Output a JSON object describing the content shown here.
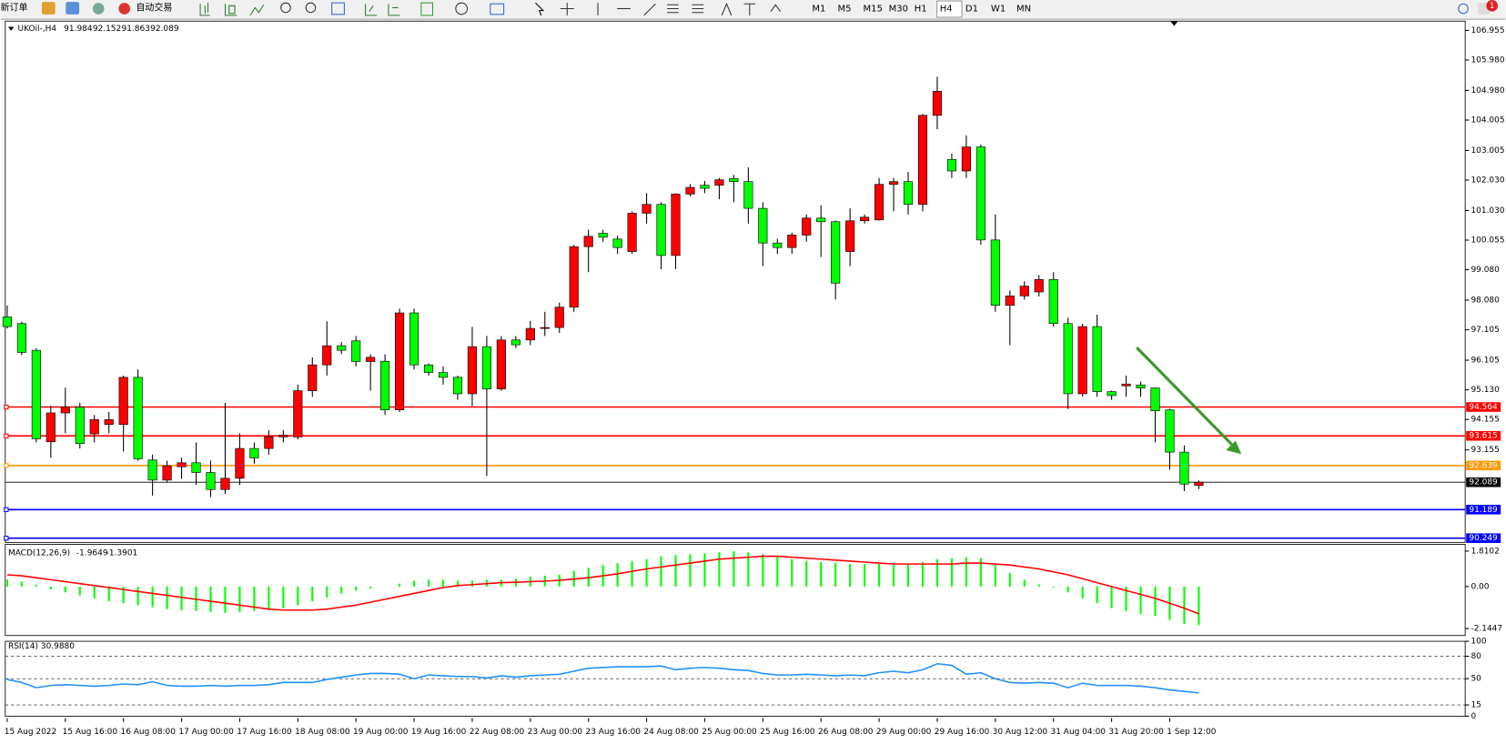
{
  "toolbar": {
    "new_order": "新订单",
    "auto_trading": "自动交易",
    "timeframes": [
      "M1",
      "M5",
      "M15",
      "M30",
      "H1",
      "H4",
      "D1",
      "W1",
      "MN"
    ],
    "active_timeframe": 5,
    "alerts": "1"
  },
  "chart_data": [
    {
      "type": "candlestick",
      "title": "UKOil-,H4",
      "up_color": "#ff0000",
      "down_color": "#00ff00",
      "categories": [
        "15 Aug 2022",
        null,
        null,
        null,
        "15 Aug 16:00",
        null,
        null,
        null,
        "16 Aug 08:00",
        null,
        null,
        null,
        "17 Aug 00:00",
        null,
        null,
        null,
        "17 Aug 16:00",
        null,
        null,
        null,
        "18 Aug 08:00",
        null,
        null,
        null,
        "19 Aug 00:00",
        null,
        null,
        null,
        "19 Aug 16:00",
        null,
        null,
        null,
        "22 Aug 08:00",
        null,
        null,
        null,
        "23 Aug 00:00",
        null,
        null,
        null,
        "23 Aug 16:00",
        null,
        null,
        null,
        "24 Aug 08:00",
        null,
        null,
        null,
        "25 Aug 00:00",
        null,
        null,
        null,
        "25 Aug 16:00",
        null,
        null,
        null,
        "26 Aug 08:00",
        null,
        null,
        null,
        "29 Aug 00:00",
        null,
        null,
        null,
        "29 Aug 16:00",
        null,
        null,
        null,
        "30 Aug 12:00",
        null,
        null,
        null,
        "31 Aug 04:00",
        null,
        null,
        null,
        "31 Aug 20:00",
        null,
        null,
        null,
        "1 Sep 12:00",
        null,
        null
      ],
      "ohlc": [
        [
          97.53,
          97.9,
          97.15,
          97.21
        ],
        [
          97.31,
          97.37,
          96.27,
          96.36
        ],
        [
          96.43,
          96.5,
          93.4,
          93.52
        ],
        [
          93.42,
          94.6,
          92.9,
          94.37
        ],
        [
          94.37,
          95.2,
          93.7,
          94.56
        ],
        [
          94.56,
          94.7,
          93.2,
          93.36
        ],
        [
          93.68,
          94.3,
          93.4,
          94.15
        ],
        [
          93.99,
          94.4,
          93.7,
          94.15
        ],
        [
          93.99,
          95.6,
          93.1,
          95.54
        ],
        [
          95.54,
          95.8,
          92.8,
          92.86
        ],
        [
          92.82,
          93.0,
          91.65,
          92.16
        ],
        [
          92.16,
          92.8,
          92.1,
          92.63
        ],
        [
          92.6,
          92.9,
          92.2,
          92.73
        ],
        [
          92.73,
          93.4,
          92.0,
          92.41
        ],
        [
          92.41,
          92.8,
          91.6,
          91.85
        ],
        [
          91.85,
          94.7,
          91.7,
          92.22
        ],
        [
          92.22,
          93.7,
          92.0,
          93.2
        ],
        [
          93.2,
          93.4,
          92.7,
          92.89
        ],
        [
          93.2,
          93.8,
          93.0,
          93.58
        ],
        [
          93.58,
          93.8,
          93.4,
          93.64
        ],
        [
          93.58,
          95.3,
          93.5,
          95.1
        ],
        [
          95.1,
          96.2,
          94.9,
          95.95
        ],
        [
          95.95,
          97.38,
          95.6,
          96.58
        ],
        [
          96.58,
          96.7,
          96.3,
          96.43
        ],
        [
          96.74,
          96.9,
          95.9,
          96.06
        ],
        [
          96.06,
          96.3,
          95.1,
          96.2
        ],
        [
          96.07,
          96.3,
          94.3,
          94.47
        ],
        [
          94.47,
          97.8,
          94.4,
          97.66
        ],
        [
          97.66,
          97.8,
          95.8,
          95.95
        ],
        [
          95.95,
          96.0,
          95.6,
          95.7
        ],
        [
          95.7,
          95.9,
          95.3,
          95.54
        ],
        [
          95.54,
          95.6,
          94.8,
          95.0
        ],
        [
          95.0,
          97.2,
          94.6,
          96.55
        ],
        [
          96.55,
          96.9,
          92.3,
          95.16
        ],
        [
          95.16,
          96.9,
          95.1,
          96.77
        ],
        [
          96.77,
          96.9,
          96.5,
          96.61
        ],
        [
          96.77,
          97.4,
          96.6,
          97.15
        ],
        [
          97.15,
          97.7,
          96.9,
          97.18
        ],
        [
          97.18,
          98.0,
          97.0,
          97.85
        ],
        [
          97.85,
          99.9,
          97.7,
          99.84
        ],
        [
          99.84,
          100.4,
          99.0,
          100.18
        ],
        [
          100.28,
          100.4,
          100.0,
          100.15
        ],
        [
          100.09,
          100.2,
          99.6,
          99.81
        ],
        [
          99.68,
          101.0,
          99.6,
          100.94
        ],
        [
          100.94,
          101.6,
          100.6,
          101.23
        ],
        [
          101.23,
          101.3,
          99.1,
          99.55
        ],
        [
          99.55,
          101.6,
          99.1,
          101.57
        ],
        [
          101.57,
          101.9,
          101.5,
          101.79
        ],
        [
          101.86,
          102.0,
          101.6,
          101.76
        ],
        [
          101.86,
          102.1,
          101.4,
          102.04
        ],
        [
          102.08,
          102.2,
          101.3,
          101.98
        ],
        [
          101.98,
          102.45,
          100.6,
          101.1
        ],
        [
          101.1,
          101.3,
          99.2,
          99.96
        ],
        [
          99.96,
          100.1,
          99.6,
          99.81
        ],
        [
          99.81,
          100.3,
          99.6,
          100.22
        ],
        [
          100.22,
          100.9,
          100.0,
          100.78
        ],
        [
          100.78,
          101.2,
          99.5,
          100.66
        ],
        [
          100.66,
          100.7,
          98.1,
          98.64
        ],
        [
          99.68,
          101.1,
          99.2,
          100.69
        ],
        [
          100.69,
          100.9,
          100.6,
          100.81
        ],
        [
          100.72,
          102.1,
          100.7,
          101.89
        ],
        [
          101.89,
          102.1,
          101.0,
          101.98
        ],
        [
          101.98,
          102.3,
          100.9,
          101.23
        ],
        [
          101.23,
          104.2,
          101.0,
          104.16
        ],
        [
          104.16,
          105.43,
          103.7,
          104.95
        ],
        [
          102.71,
          102.9,
          102.1,
          102.33
        ],
        [
          102.33,
          103.5,
          102.1,
          103.12
        ],
        [
          103.12,
          103.2,
          99.9,
          100.06
        ],
        [
          100.06,
          100.9,
          97.7,
          97.91
        ],
        [
          97.91,
          98.4,
          96.6,
          98.22
        ],
        [
          98.22,
          98.7,
          98.1,
          98.54
        ],
        [
          98.35,
          98.9,
          98.2,
          98.76
        ],
        [
          98.76,
          99.0,
          97.2,
          97.31
        ],
        [
          97.31,
          97.5,
          94.5,
          95.0
        ],
        [
          95.0,
          97.3,
          94.9,
          97.21
        ],
        [
          97.21,
          97.6,
          94.9,
          95.07
        ],
        [
          95.07,
          95.1,
          94.8,
          94.94
        ],
        [
          95.26,
          95.6,
          94.9,
          95.32
        ],
        [
          95.29,
          95.4,
          94.9,
          95.19
        ],
        [
          95.19,
          95.2,
          93.4,
          94.44
        ],
        [
          94.47,
          94.5,
          92.5,
          93.08
        ],
        [
          93.08,
          93.3,
          91.8,
          92.03
        ],
        [
          91.984,
          92.152,
          91.863,
          92.089
        ]
      ],
      "ylim": [
        90.11,
        107.26
      ],
      "yticks": [
        106.955,
        {
          "value": 105.98,
          "label": "105.980"
        },
        {
          "value": 104.98,
          "label": "104.980"
        },
        104.005,
        103.005,
        {
          "value": 102.03,
          "label": "102.030"
        },
        {
          "value": 101.03,
          "label": "101.030"
        },
        100.055,
        {
          "value": 99.08,
          "label": "99.080"
        },
        {
          "value": 98.08,
          "label": "98.080"
        },
        97.105,
        96.105,
        {
          "value": 95.13,
          "label": "95.130"
        },
        94.155,
        93.155
      ],
      "levels": [
        {
          "value": 94.564,
          "color": "#ff0000"
        },
        {
          "value": 93.615,
          "color": "#ff0000"
        },
        {
          "value": 92.639,
          "color": "#ff9900"
        },
        {
          "value": 91.189,
          "color": "#0000ff"
        },
        {
          "value": 90.249,
          "color": "#0000ff"
        }
      ]
    },
    {
      "type": "macd",
      "title": "MACD(12,26,9)",
      "ylim": [
        -2.5,
        2.157
      ],
      "yticks": [
        1.8102,
        {
          "value": 0,
          "label": "0.00"
        },
        -2.1447
      ],
      "series": [
        {
          "color": "#00ff00",
          "values": [
            0.35,
            0.25,
            0.1,
            -0.15,
            -0.3,
            -0.45,
            -0.6,
            -0.75,
            -0.85,
            -0.95,
            -1.05,
            -1.15,
            -1.2,
            -1.25,
            -1.3,
            -1.35,
            -1.3,
            -1.25,
            -1.2,
            -1.1,
            -0.95,
            -0.75,
            -0.55,
            -0.35,
            -0.2,
            -0.1,
            0.0,
            0.15,
            0.3,
            0.35,
            0.35,
            0.3,
            0.3,
            0.35,
            0.35,
            0.4,
            0.5,
            0.55,
            0.6,
            0.8,
            0.95,
            1.1,
            1.2,
            1.3,
            1.4,
            1.55,
            1.6,
            1.65,
            1.7,
            1.75,
            1.8,
            1.75,
            1.65,
            1.5,
            1.4,
            1.3,
            1.25,
            1.2,
            1.15,
            1.15,
            1.15,
            1.1,
            1.15,
            1.25,
            1.4,
            1.45,
            1.5,
            1.45,
            1.1,
            0.7,
            0.35,
            0.1,
            -0.05,
            -0.3,
            -0.6,
            -0.85,
            -1.1,
            -1.25,
            -1.4,
            -1.5,
            -1.7,
            -1.9,
            -1.9649
          ]
        },
        {
          "color": "#ff0000",
          "values": [
            0.6,
            0.55,
            0.45,
            0.35,
            0.25,
            0.15,
            0.05,
            -0.05,
            -0.15,
            -0.25,
            -0.35,
            -0.45,
            -0.55,
            -0.65,
            -0.75,
            -0.85,
            -0.95,
            -1.05,
            -1.15,
            -1.2,
            -1.2,
            -1.2,
            -1.15,
            -1.05,
            -0.95,
            -0.8,
            -0.65,
            -0.5,
            -0.35,
            -0.2,
            -0.05,
            0.05,
            0.1,
            0.15,
            0.2,
            0.22,
            0.25,
            0.28,
            0.32,
            0.38,
            0.45,
            0.55,
            0.65,
            0.78,
            0.9,
            1.0,
            1.1,
            1.2,
            1.3,
            1.4,
            1.45,
            1.5,
            1.55,
            1.55,
            1.5,
            1.45,
            1.4,
            1.35,
            1.3,
            1.25,
            1.2,
            1.15,
            1.15,
            1.15,
            1.15,
            1.15,
            1.2,
            1.2,
            1.15,
            1.1,
            1.0,
            0.9,
            0.75,
            0.6,
            0.4,
            0.2,
            0.0,
            -0.2,
            -0.4,
            -0.6,
            -0.85,
            -1.1,
            -1.3901
          ]
        }
      ]
    },
    {
      "type": "rsi",
      "title": "RSI(14)",
      "ylim": [
        0,
        100
      ],
      "yticks": [
        100,
        80,
        50,
        15,
        0
      ],
      "series": [
        {
          "color": "#1e90ff",
          "values": [
            49,
            45,
            38,
            41,
            42,
            41,
            40,
            41,
            43,
            42,
            46,
            41,
            40,
            40,
            41,
            40,
            41,
            41,
            42,
            45,
            45,
            45,
            49,
            52,
            55,
            57,
            57,
            56,
            50,
            55,
            54,
            53,
            53,
            51,
            54,
            52,
            54,
            55,
            56,
            60,
            64,
            65,
            66,
            66,
            66,
            67,
            62,
            64,
            65,
            64,
            62,
            61,
            57,
            55,
            55,
            56,
            55,
            54,
            55,
            54,
            58,
            60,
            58,
            62,
            70,
            68,
            56,
            58,
            50,
            45,
            44,
            45,
            44,
            38,
            44,
            41,
            41,
            41,
            40,
            38,
            35,
            33,
            30.988
          ],
          "value_labels": [
            null,
            null,
            null,
            null,
            null,
            null,
            null,
            null,
            null,
            null,
            null,
            null,
            null,
            null,
            null,
            null,
            null,
            null,
            null,
            null,
            null,
            null,
            null,
            null,
            null,
            null,
            null,
            null,
            null,
            null,
            null,
            null,
            null,
            null,
            null,
            null,
            null,
            null,
            null,
            null,
            null,
            null,
            null,
            null,
            null,
            null,
            null,
            null,
            null,
            null,
            null,
            null,
            null,
            null,
            null,
            null,
            null,
            null,
            null,
            null,
            null,
            null,
            null,
            null,
            null,
            null,
            null,
            null,
            null,
            null,
            null,
            null,
            null,
            null,
            null,
            null,
            null,
            null,
            null,
            null,
            null,
            null,
            "30.9880"
          ]
        }
      ]
    }
  ]
}
